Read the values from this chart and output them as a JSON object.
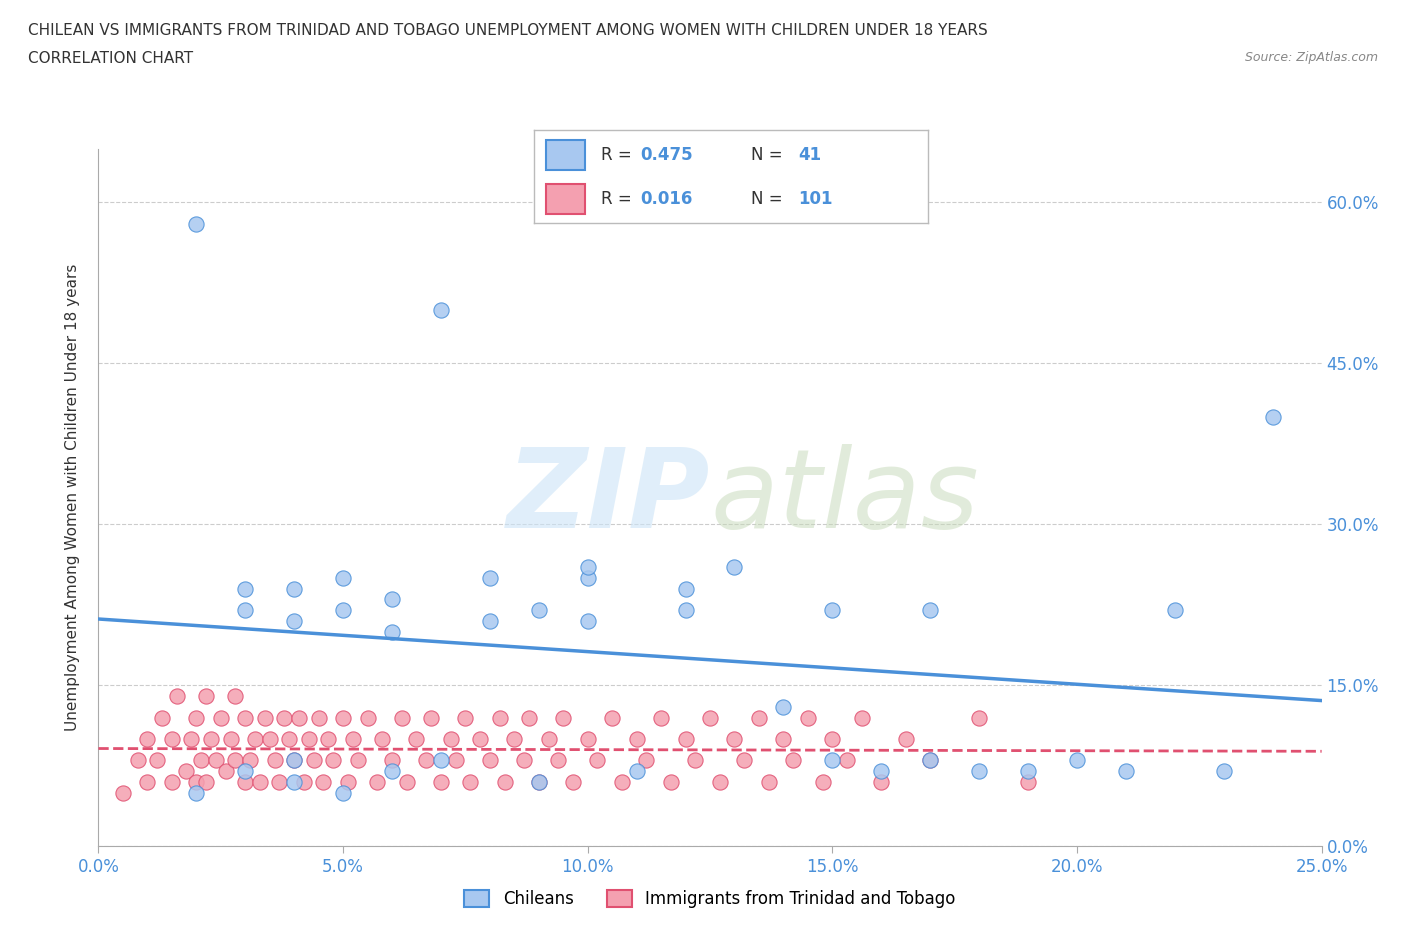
{
  "title_line1": "CHILEAN VS IMMIGRANTS FROM TRINIDAD AND TOBAGO UNEMPLOYMENT AMONG WOMEN WITH CHILDREN UNDER 18 YEARS",
  "title_line2": "CORRELATION CHART",
  "source": "Source: ZipAtlas.com",
  "ylabel": "Unemployment Among Women with Children Under 18 years",
  "xlim": [
    0.0,
    0.25
  ],
  "ylim": [
    0.0,
    0.65
  ],
  "xticks": [
    0.0,
    0.05,
    0.1,
    0.15,
    0.2,
    0.25
  ],
  "xticklabels": [
    "0.0%",
    "5.0%",
    "10.0%",
    "15.0%",
    "20.0%",
    "25.0%"
  ],
  "yticks_right": [
    0.0,
    0.15,
    0.3,
    0.45,
    0.6
  ],
  "yticklabels_right": [
    "0.0%",
    "15.0%",
    "30.0%",
    "45.0%",
    "60.0%"
  ],
  "blue_color": "#a8c8f0",
  "blue_line_color": "#4a90d9",
  "pink_color": "#f4a0b0",
  "pink_line_color": "#e05070",
  "blue_R": 0.475,
  "blue_N": 41,
  "pink_R": 0.016,
  "pink_N": 101,
  "legend_label_blue": "Chileans",
  "legend_label_pink": "Immigrants from Trinidad and Tobago",
  "blue_scatter_x": [
    0.02,
    0.02,
    0.03,
    0.03,
    0.03,
    0.04,
    0.04,
    0.04,
    0.04,
    0.05,
    0.05,
    0.05,
    0.06,
    0.06,
    0.06,
    0.07,
    0.07,
    0.08,
    0.08,
    0.09,
    0.09,
    0.1,
    0.1,
    0.1,
    0.11,
    0.12,
    0.12,
    0.13,
    0.14,
    0.15,
    0.15,
    0.16,
    0.17,
    0.17,
    0.18,
    0.19,
    0.2,
    0.21,
    0.22,
    0.23,
    0.24
  ],
  "blue_scatter_y": [
    0.58,
    0.05,
    0.07,
    0.22,
    0.24,
    0.06,
    0.08,
    0.21,
    0.24,
    0.05,
    0.22,
    0.25,
    0.07,
    0.2,
    0.23,
    0.08,
    0.5,
    0.21,
    0.25,
    0.06,
    0.22,
    0.21,
    0.25,
    0.26,
    0.07,
    0.22,
    0.24,
    0.26,
    0.13,
    0.08,
    0.22,
    0.07,
    0.08,
    0.22,
    0.07,
    0.07,
    0.08,
    0.07,
    0.22,
    0.07,
    0.4
  ],
  "pink_scatter_x": [
    0.005,
    0.008,
    0.01,
    0.01,
    0.012,
    0.013,
    0.015,
    0.015,
    0.016,
    0.018,
    0.019,
    0.02,
    0.02,
    0.021,
    0.022,
    0.022,
    0.023,
    0.024,
    0.025,
    0.026,
    0.027,
    0.028,
    0.028,
    0.03,
    0.03,
    0.031,
    0.032,
    0.033,
    0.034,
    0.035,
    0.036,
    0.037,
    0.038,
    0.039,
    0.04,
    0.041,
    0.042,
    0.043,
    0.044,
    0.045,
    0.046,
    0.047,
    0.048,
    0.05,
    0.051,
    0.052,
    0.053,
    0.055,
    0.057,
    0.058,
    0.06,
    0.062,
    0.063,
    0.065,
    0.067,
    0.068,
    0.07,
    0.072,
    0.073,
    0.075,
    0.076,
    0.078,
    0.08,
    0.082,
    0.083,
    0.085,
    0.087,
    0.088,
    0.09,
    0.092,
    0.094,
    0.095,
    0.097,
    0.1,
    0.102,
    0.105,
    0.107,
    0.11,
    0.112,
    0.115,
    0.117,
    0.12,
    0.122,
    0.125,
    0.127,
    0.13,
    0.132,
    0.135,
    0.137,
    0.14,
    0.142,
    0.145,
    0.148,
    0.15,
    0.153,
    0.156,
    0.16,
    0.165,
    0.17,
    0.18,
    0.19
  ],
  "pink_scatter_y": [
    0.05,
    0.08,
    0.1,
    0.06,
    0.08,
    0.12,
    0.06,
    0.1,
    0.14,
    0.07,
    0.1,
    0.06,
    0.12,
    0.08,
    0.06,
    0.14,
    0.1,
    0.08,
    0.12,
    0.07,
    0.1,
    0.14,
    0.08,
    0.06,
    0.12,
    0.08,
    0.1,
    0.06,
    0.12,
    0.1,
    0.08,
    0.06,
    0.12,
    0.1,
    0.08,
    0.12,
    0.06,
    0.1,
    0.08,
    0.12,
    0.06,
    0.1,
    0.08,
    0.12,
    0.06,
    0.1,
    0.08,
    0.12,
    0.06,
    0.1,
    0.08,
    0.12,
    0.06,
    0.1,
    0.08,
    0.12,
    0.06,
    0.1,
    0.08,
    0.12,
    0.06,
    0.1,
    0.08,
    0.12,
    0.06,
    0.1,
    0.08,
    0.12,
    0.06,
    0.1,
    0.08,
    0.12,
    0.06,
    0.1,
    0.08,
    0.12,
    0.06,
    0.1,
    0.08,
    0.12,
    0.06,
    0.1,
    0.08,
    0.12,
    0.06,
    0.1,
    0.08,
    0.12,
    0.06,
    0.1,
    0.08,
    0.12,
    0.06,
    0.1,
    0.08,
    0.12,
    0.06,
    0.1,
    0.08,
    0.12,
    0.06
  ],
  "grid_color": "#cccccc",
  "background_color": "#ffffff",
  "text_color_blue": "#4a90d9",
  "text_color_dark": "#333333"
}
